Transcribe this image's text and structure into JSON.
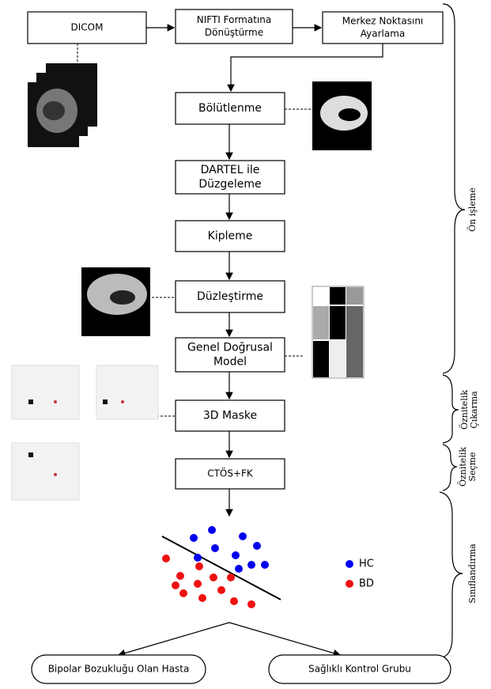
{
  "nodes": [
    {
      "label": [
        "DICOM"
      ]
    },
    {
      "label": [
        "NIFTI Formatına",
        "Dönüştürme"
      ]
    },
    {
      "label": [
        "Merkez Noktasını",
        "Ayarlama"
      ]
    },
    {
      "label": [
        "Bölütlenme"
      ]
    },
    {
      "label": [
        "DARTEL ile",
        "Düzgeleme"
      ]
    },
    {
      "label": [
        "Kipleme"
      ]
    },
    {
      "label": [
        "Düzleştirme"
      ]
    },
    {
      "label": [
        "Genel Doğrusal",
        "Model"
      ]
    },
    {
      "label": [
        "3D Maske"
      ]
    },
    {
      "label": [
        "CTÖS+FK"
      ]
    }
  ],
  "legend": [
    "HC",
    "BD"
  ],
  "outcomes": [
    "Bipolar Bozukluğu Olan Hasta",
    "Sağlıklı Kontrol Grubu"
  ],
  "stages": [
    {
      "label": [
        "Ön işleme"
      ]
    },
    {
      "label": [
        "Öznitelik",
        "Çıkarma"
      ]
    },
    {
      "label": [
        "Öznitelik",
        "Seçme"
      ]
    },
    {
      "label": [
        "Sınıflandırma"
      ]
    }
  ]
}
